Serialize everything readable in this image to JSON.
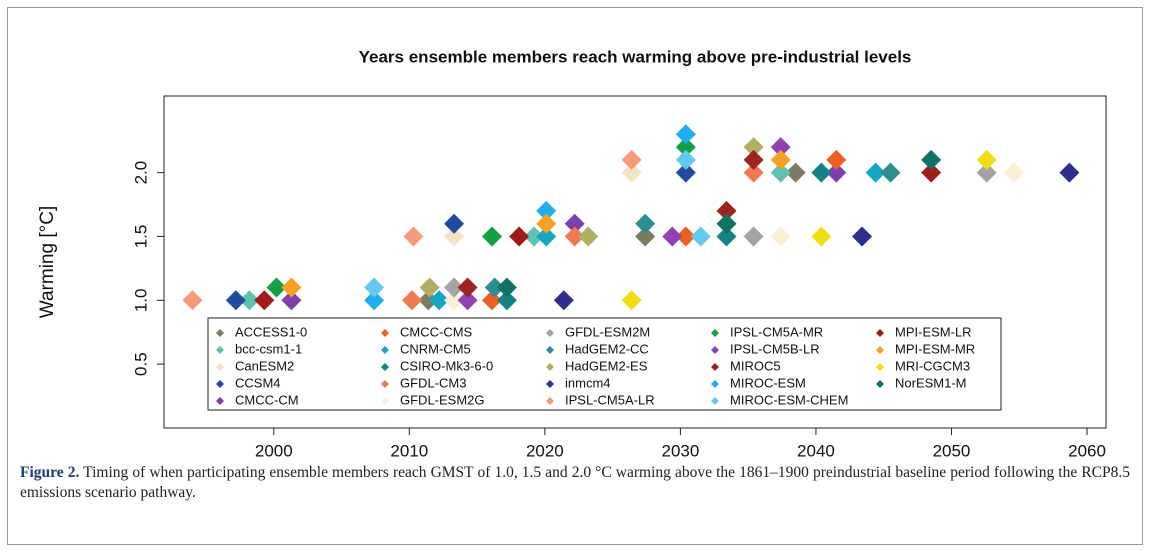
{
  "chart_data": {
    "type": "scatter",
    "title": "Years ensemble members reach warming above pre-industrial levels",
    "y_label": "Warming [°C]",
    "xlim": [
      1991.9,
      2061.4
    ],
    "ylim": [
      0,
      2.6
    ],
    "xticks": [
      2000,
      2010,
      2020,
      2030,
      2040,
      2050,
      2060
    ],
    "yticks": [
      0.5,
      {
        "value": 1,
        "label": "1.0"
      },
      1.5,
      {
        "value": 2,
        "label": "2.0"
      }
    ],
    "series": [
      {
        "name": "ACCESS1-0",
        "color": "#7d7a62",
        "x": [
          2011.4,
          2027.4,
          2038.5
        ],
        "values": [
          1.0,
          1.5,
          2.0
        ]
      },
      {
        "name": "bcc-csm1-1",
        "color": "#5cc4ae",
        "x": [
          1998.2,
          2019.2,
          2037.4
        ],
        "values": [
          1.0,
          1.5,
          2.0
        ]
      },
      {
        "name": "CanESM2",
        "color": "#f3e2c6",
        "x": [
          2013.3,
          2013.3,
          2026.4
        ],
        "values": [
          1.0,
          1.5,
          2.0
        ]
      },
      {
        "name": "CCSM4",
        "color": "#1f4c9c",
        "x": [
          1997.2,
          2013.3,
          2030.4
        ],
        "values": [
          1.0,
          1.6,
          2.0
        ]
      },
      {
        "name": "CMCC-CM",
        "color": "#7d3fae",
        "x": [
          2001.3,
          2022.2,
          2041.5
        ],
        "values": [
          1.0,
          1.6,
          2.0
        ]
      },
      {
        "name": "CMCC-CMS",
        "color": "#ef5f22",
        "x": [
          2016.1,
          2030.4,
          2041.5
        ],
        "values": [
          1.0,
          1.5,
          2.1
        ]
      },
      {
        "name": "CNRM-CM5",
        "color": "#12a7c2",
        "x": [
          2012.2,
          2020.1,
          2044.4
        ],
        "values": [
          1.0,
          1.5,
          2.0
        ]
      },
      {
        "name": "CSIRO-Mk3-6-0",
        "color": "#138282",
        "x": [
          2017.2,
          2033.4,
          2040.4
        ],
        "values": [
          1.0,
          1.5,
          2.0
        ]
      },
      {
        "name": "GFDL-CM3",
        "color": "#ef7a52",
        "x": [
          2010.2,
          2022.2,
          2035.4
        ],
        "values": [
          1.0,
          1.5,
          2.0
        ]
      },
      {
        "name": "GFDL-ESM2G",
        "color": "#fbeed6",
        "x": [
          2013.3,
          2037.4,
          2054.6
        ],
        "values": [
          1.0,
          1.5,
          2.0
        ]
      },
      {
        "name": "GFDL-ESM2M",
        "color": "#a3a3a3",
        "x": [
          2013.3,
          2035.4,
          2052.6
        ],
        "values": [
          1.1,
          1.5,
          2.0
        ]
      },
      {
        "name": "HadGEM2-CC",
        "color": "#2b8f8f",
        "x": [
          2016.3,
          2027.4,
          2045.5
        ],
        "values": [
          1.1,
          1.6,
          2.0
        ]
      },
      {
        "name": "HadGEM2-ES",
        "color": "#b1b062",
        "x": [
          2011.5,
          2023.2,
          2035.4
        ],
        "values": [
          1.1,
          1.5,
          2.2
        ]
      },
      {
        "name": "inmcm4",
        "color": "#2e2f8e",
        "x": [
          2021.4,
          2043.4,
          2058.7
        ],
        "values": [
          1.0,
          1.5,
          2.0
        ]
      },
      {
        "name": "IPSL-CM5A-LR",
        "color": "#f79a7c",
        "x": [
          1994.0,
          2010.3,
          2026.4
        ],
        "values": [
          1.0,
          1.5,
          2.1
        ]
      },
      {
        "name": "IPSL-CM5A-MR",
        "color": "#12a043",
        "x": [
          2000.2,
          2016.1,
          2030.4
        ],
        "values": [
          1.1,
          1.5,
          2.2
        ]
      },
      {
        "name": "IPSL-CM5B-LR",
        "color": "#9142b2",
        "x": [
          2014.3,
          2029.4,
          2037.4
        ],
        "values": [
          1.0,
          1.5,
          2.2
        ]
      },
      {
        "name": "MIROC5",
        "color": "#9e2323",
        "x": [
          2014.3,
          2033.4,
          2035.4
        ],
        "values": [
          1.1,
          1.7,
          2.1
        ]
      },
      {
        "name": "MIROC-ESM",
        "color": "#1eaff0",
        "x": [
          2007.4,
          2020.1,
          2030.4
        ],
        "values": [
          1.0,
          1.7,
          2.3
        ]
      },
      {
        "name": "MIROC-ESM-CHEM",
        "color": "#63c9ef",
        "x": [
          2007.4,
          2031.5,
          2030.4
        ],
        "values": [
          1.1,
          1.5,
          2.1
        ]
      },
      {
        "name": "MPI-ESM-LR",
        "color": "#a11b1b",
        "x": [
          1999.3,
          2018.1,
          2048.5
        ],
        "values": [
          1.0,
          1.5,
          2.0
        ]
      },
      {
        "name": "MPI-ESM-MR",
        "color": "#f7a021",
        "x": [
          2001.3,
          2020.1,
          2037.4
        ],
        "values": [
          1.1,
          1.6,
          2.1
        ]
      },
      {
        "name": "MRI-CGCM3",
        "color": "#efdf12",
        "x": [
          2026.4,
          2040.4,
          2052.6
        ],
        "values": [
          1.0,
          1.5,
          2.1
        ]
      },
      {
        "name": "NorESM1-M",
        "color": "#107262",
        "x": [
          2017.2,
          2033.4,
          2048.5
        ],
        "values": [
          1.1,
          1.6,
          2.1
        ]
      }
    ]
  },
  "caption": {
    "label": "Figure 2.",
    "text": "Timing of when participating ensemble members reach GMST of 1.0, 1.5 and 2.0 °C warming above the 1861–1900 preindustrial baseline period following the RCP8.5 emissions scenario pathway."
  }
}
